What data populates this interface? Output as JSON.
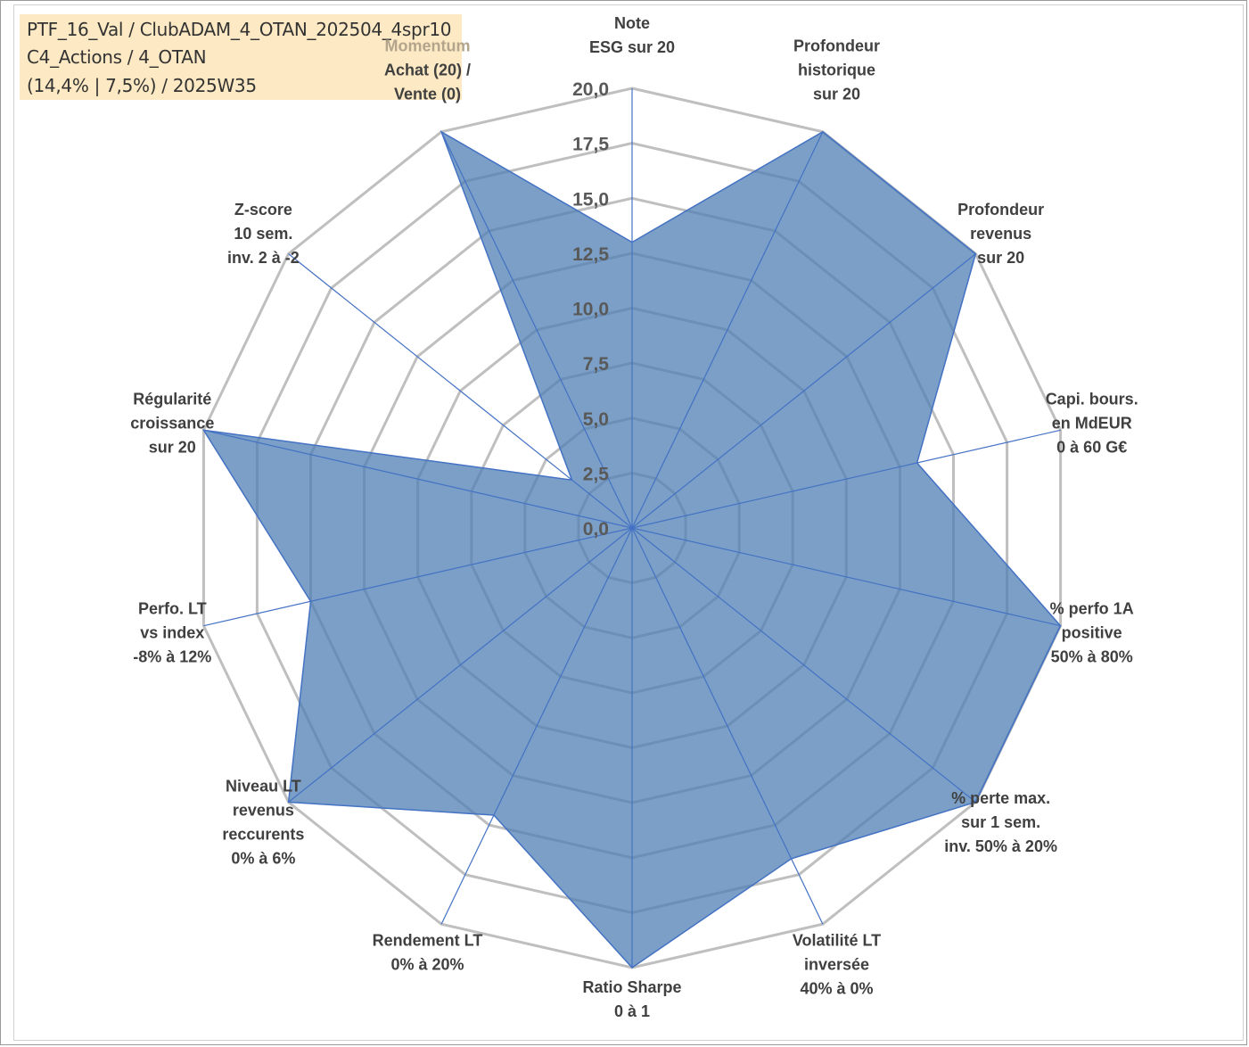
{
  "info": {
    "line1": "PTF_16_Val / ClubADAM_4_OTAN_202504_4spr10",
    "line2": "C4_Actions / 4_OTAN",
    "line3": "(14,4% | 7,5%) / 2025W35"
  },
  "colors": {
    "grid": "#bfbfbf",
    "spoke": "#4472c4",
    "fill": "#4f7fb3",
    "fill_opacity": 0.75,
    "outline": "#4472c4",
    "info_bg": "#fde9c3"
  },
  "chart_data": {
    "type": "radar",
    "rmin": 0,
    "rmax": 20,
    "ticks": [
      "0,0",
      "2,5",
      "5,0",
      "7,5",
      "10,0",
      "12,5",
      "15,0",
      "17,5",
      "20,0"
    ],
    "extra_label": "Momentum",
    "axes": [
      {
        "label": [
          "Note",
          "ESG sur 20"
        ],
        "value": 13
      },
      {
        "label": [
          "Profondeur",
          "historique",
          "sur 20"
        ],
        "value": 20
      },
      {
        "label": [
          "Profondeur",
          "revenus",
          "sur 20"
        ],
        "value": 20
      },
      {
        "label": [
          "Capi. bours.",
          "en MdEUR",
          "0 à 60 G€"
        ],
        "value": 13.3
      },
      {
        "label": [
          "% perfo 1A",
          "positive",
          "50% à 80%"
        ],
        "value": 20
      },
      {
        "label": [
          "% perte max.",
          "sur 1 sem.",
          "inv. 50% à 20%"
        ],
        "value": 20
      },
      {
        "label": [
          "Volatilité LT",
          "inversée",
          "40% à 0%"
        ],
        "value": 16.7
      },
      {
        "label": [
          "Ratio Sharpe",
          "0 à 1"
        ],
        "value": 20
      },
      {
        "label": [
          "Rendement LT",
          "0% à 20%"
        ],
        "value": 14.5
      },
      {
        "label": [
          "Niveau LT",
          "revenus",
          "reccurents",
          "0% à 6%"
        ],
        "value": 20
      },
      {
        "label": [
          "Perfo. LT",
          "vs index",
          "-8% à 12%"
        ],
        "value": 15
      },
      {
        "label": [
          "Régularité",
          "croissance",
          "sur 20"
        ],
        "value": 20
      },
      {
        "label": [
          "Z-score",
          "10 sem.",
          "inv. 2 à -2"
        ],
        "value": 3.5
      },
      {
        "label": [
          "Achat (20) /",
          "Vente (0)"
        ],
        "value": 20
      }
    ]
  }
}
